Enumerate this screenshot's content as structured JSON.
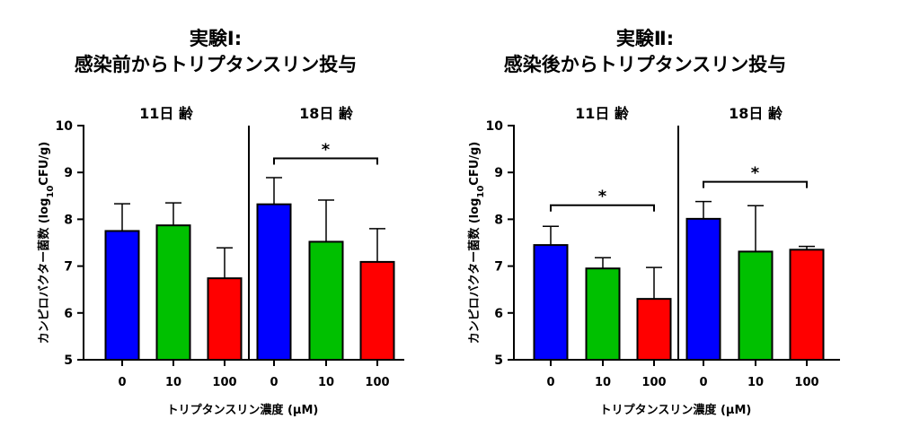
{
  "chart_data": [
    {
      "type": "bar",
      "title": "実験Ⅰ:",
      "subtitle": "感染前からトリプタンスリン投与",
      "ylabel_prefix": "カンピロバクター菌数 (log",
      "ylabel_sub": "10",
      "ylabel_suffix": "CFU/g)",
      "xlabel": "トリプタンスリン濃度 (μM)",
      "ylim": [
        5,
        10
      ],
      "yticks": [
        "5",
        "6",
        "7",
        "8",
        "9",
        "10"
      ],
      "groups": [
        {
          "label": "11日 齢",
          "categories": [
            "0",
            "10",
            "100"
          ],
          "values": [
            7.75,
            7.87,
            6.74
          ],
          "errors": [
            0.58,
            0.48,
            0.65
          ],
          "colors": [
            "#0000ff",
            "#00c000",
            "#ff0000"
          ]
        },
        {
          "label": "18日 齢",
          "categories": [
            "0",
            "10",
            "100"
          ],
          "values": [
            8.32,
            7.52,
            7.09
          ],
          "errors": [
            0.57,
            0.89,
            0.71
          ],
          "colors": [
            "#0000ff",
            "#00c000",
            "#ff0000"
          ]
        }
      ],
      "significance": [
        {
          "group": 1,
          "from": 0,
          "to": 2,
          "y": 9.3,
          "label": "*"
        }
      ]
    },
    {
      "type": "bar",
      "title": "実験Ⅱ:",
      "subtitle": "感染後からトリプタンスリン投与",
      "ylabel_prefix": "カンピロバクター菌数 (log",
      "ylabel_sub": "10",
      "ylabel_suffix": "CFU/g)",
      "xlabel": "トリプタンスリン濃度 (μM)",
      "ylim": [
        5,
        10
      ],
      "yticks": [
        "5",
        "6",
        "7",
        "8",
        "9",
        "10"
      ],
      "groups": [
        {
          "label": "11日 齢",
          "categories": [
            "0",
            "10",
            "100"
          ],
          "values": [
            7.45,
            6.95,
            6.3
          ],
          "errors": [
            0.4,
            0.23,
            0.67
          ],
          "colors": [
            "#0000ff",
            "#00c000",
            "#ff0000"
          ]
        },
        {
          "label": "18日 齢",
          "categories": [
            "0",
            "10",
            "100"
          ],
          "values": [
            8.01,
            7.31,
            7.35
          ],
          "errors": [
            0.37,
            0.98,
            0.07
          ],
          "colors": [
            "#0000ff",
            "#00c000",
            "#ff0000"
          ]
        }
      ],
      "significance": [
        {
          "group": 0,
          "from": 0,
          "to": 2,
          "y": 8.3,
          "label": "*"
        },
        {
          "group": 1,
          "from": 0,
          "to": 2,
          "y": 8.8,
          "label": "*"
        }
      ]
    }
  ]
}
